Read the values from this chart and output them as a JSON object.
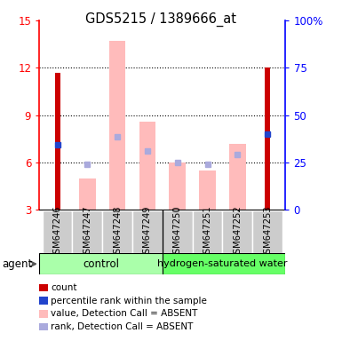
{
  "title": "GDS5215 / 1389666_at",
  "samples": [
    "GSM647246",
    "GSM647247",
    "GSM647248",
    "GSM647249",
    "GSM647250",
    "GSM647251",
    "GSM647252",
    "GSM647253"
  ],
  "red_bars_values": [
    11.7,
    0,
    0,
    0,
    0,
    0,
    0,
    12.0
  ],
  "blue_squares_values": [
    7.1,
    0,
    0,
    0,
    0,
    0,
    0,
    7.8
  ],
  "pink_bars_values": [
    0,
    5.0,
    13.7,
    8.6,
    6.0,
    5.5,
    7.2,
    0
  ],
  "lavender_squares_values": [
    0,
    5.9,
    7.6,
    6.7,
    6.0,
    5.9,
    6.5,
    0
  ],
  "red_bar_color": "#cc0000",
  "blue_sq_color": "#2244cc",
  "pink_bar_color": "#ffbbbb",
  "lav_sq_color": "#aaaadd",
  "ylim_left": [
    3,
    15
  ],
  "ylim_right": [
    0,
    100
  ],
  "yticks_left": [
    3,
    6,
    9,
    12,
    15
  ],
  "yticks_right": [
    0,
    25,
    50,
    75,
    100
  ],
  "ytick_labels_right": [
    "0",
    "25",
    "50",
    "75",
    "100%"
  ],
  "control_color": "#aaffaa",
  "hydro_color": "#66ff66",
  "legend_labels": [
    "count",
    "percentile rank within the sample",
    "value, Detection Call = ABSENT",
    "rank, Detection Call = ABSENT"
  ],
  "legend_colors": [
    "#cc0000",
    "#2244cc",
    "#ffbbbb",
    "#aaaadd"
  ],
  "bar_width": 0.55,
  "red_bar_width": 0.18
}
